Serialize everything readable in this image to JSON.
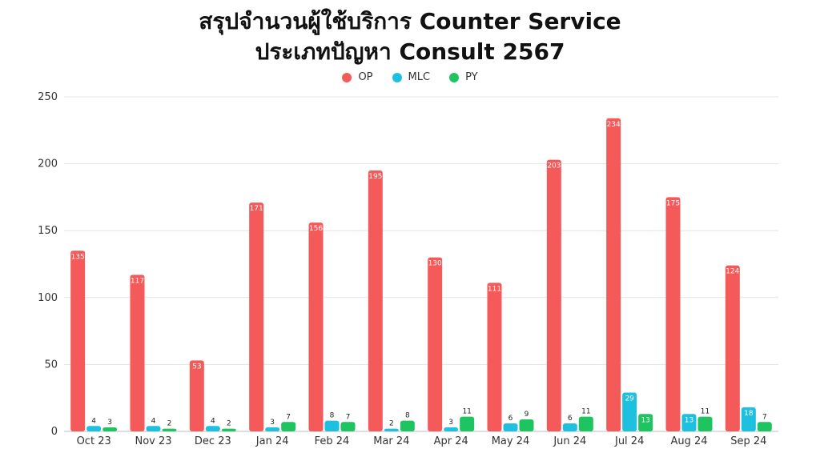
{
  "chart_data": {
    "type": "bar",
    "title_line1": "สรุปจำนวนผู้ใช้บริการ Counter Service",
    "title_line2": "ประเภทปัญหา Consult 2567",
    "categories": [
      "Oct 23",
      "Nov 23",
      "Dec 23",
      "Jan 24",
      "Feb 24",
      "Mar 24",
      "Apr 24",
      "May 24",
      "Jun 24",
      "Jul 24",
      "Aug 24",
      "Sep 24"
    ],
    "series": [
      {
        "name": "OP",
        "color": "#f55a5a",
        "values": [
          135,
          117,
          53,
          171,
          156,
          195,
          130,
          111,
          203,
          234,
          175,
          124
        ]
      },
      {
        "name": "MLC",
        "color": "#1ec0e0",
        "values": [
          4,
          4,
          4,
          3,
          8,
          2,
          3,
          6,
          6,
          29,
          13,
          18
        ]
      },
      {
        "name": "PY",
        "color": "#1ec45f",
        "values": [
          3,
          2,
          2,
          7,
          7,
          8,
          11,
          9,
          11,
          13,
          11,
          7
        ]
      }
    ],
    "ylim": [
      0,
      250
    ],
    "yticks": [
      0,
      50,
      100,
      150,
      200,
      250
    ],
    "grid": true,
    "legend_position": "top-center"
  }
}
